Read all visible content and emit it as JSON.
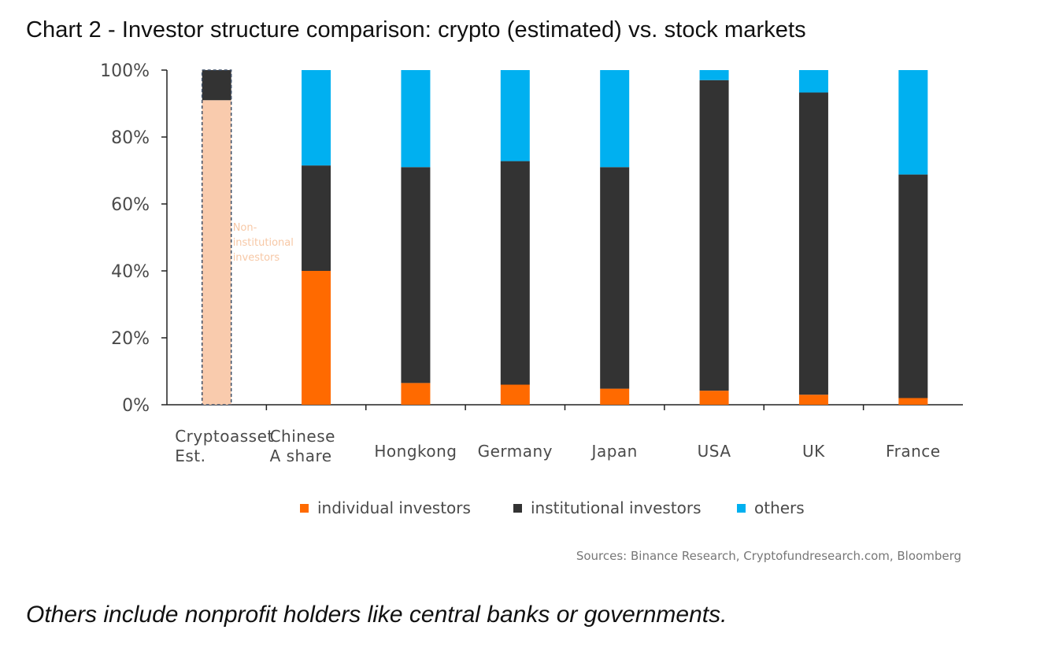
{
  "title": "Chart 2 - Investor structure comparison: crypto (estimated) vs. stock markets",
  "caption": "Others include nonprofit holders like central banks or governments.",
  "source": "Sources: Binance Research, Cryptofundresearch.com, Bloomberg",
  "colors": {
    "individual": "#ff6a00",
    "institutional": "#333333",
    "others": "#00b0f0",
    "crypto_estimate": "#f9cbad",
    "crypto_border": "#3f4f66",
    "axis": "#222222"
  },
  "chart_data": {
    "type": "bar",
    "stacked": true,
    "ylim": [
      0,
      100
    ],
    "yticks": [
      "0%",
      "20%",
      "40%",
      "60%",
      "80%",
      "100%"
    ],
    "categories": [
      [
        "Cryptoasset",
        "Est."
      ],
      [
        "Chinese",
        "A share"
      ],
      [
        "Hongkong"
      ],
      [
        "Germany"
      ],
      [
        "Japan"
      ],
      [
        "USA"
      ],
      [
        "UK"
      ],
      [
        "France"
      ]
    ],
    "series": [
      {
        "name": "individual investors",
        "color_key": "individual",
        "values": [
          0,
          40,
          6.5,
          6,
          4.8,
          4.2,
          3,
          2
        ]
      },
      {
        "name": "institutional investors",
        "color_key": "institutional",
        "values": [
          91,
          31.5,
          64.5,
          66.8,
          66.2,
          92.8,
          90.3,
          66.8
        ]
      },
      {
        "name": "others",
        "color_key": "others",
        "values": [
          0,
          28.5,
          29,
          27.2,
          29,
          3,
          6.7,
          31.2
        ]
      }
    ],
    "crypto_estimate": {
      "category_index": 0,
      "value": 91,
      "annotation": [
        "Non-",
        "institutional",
        "investors"
      ]
    },
    "legend": {
      "position": "bottom",
      "entries": [
        "individual investors",
        "institutional investors",
        "others"
      ]
    },
    "grid": false
  }
}
